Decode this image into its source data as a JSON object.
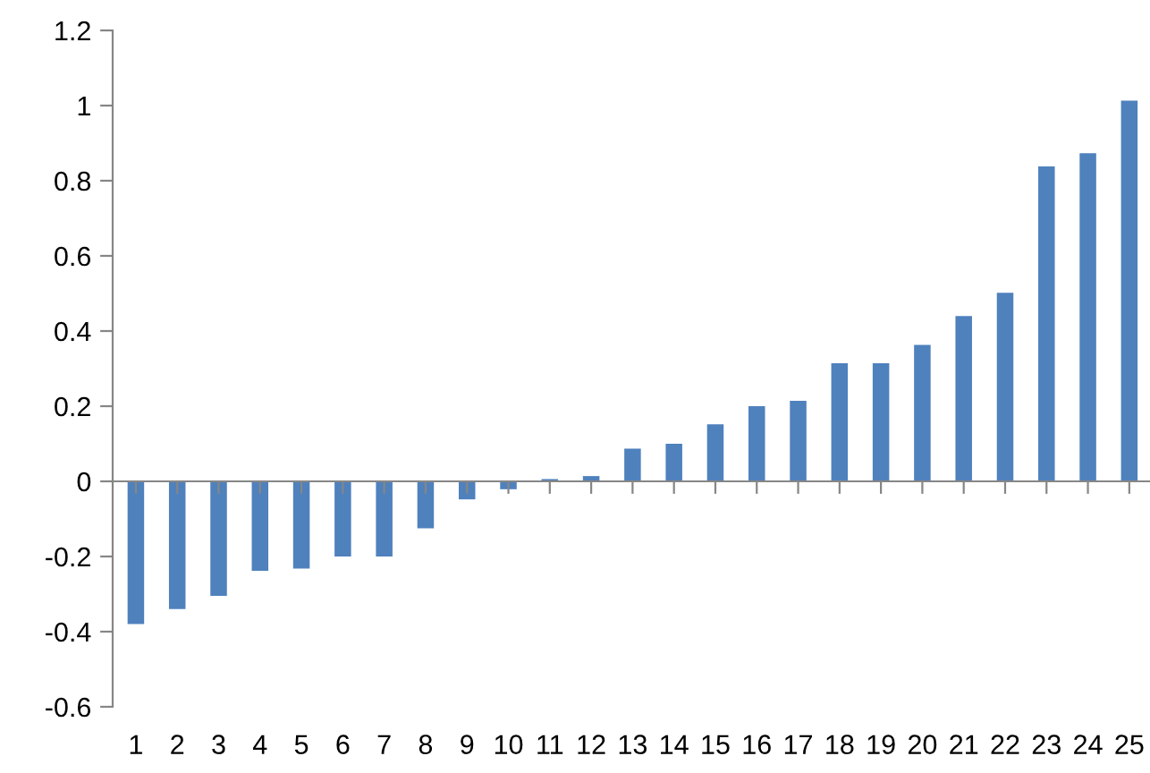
{
  "chart_data": {
    "type": "bar",
    "categories": [
      "1",
      "2",
      "3",
      "4",
      "5",
      "6",
      "7",
      "8",
      "9",
      "10",
      "11",
      "12",
      "13",
      "14",
      "15",
      "16",
      "17",
      "18",
      "19",
      "20",
      "21",
      "22",
      "23",
      "24",
      "25"
    ],
    "values": [
      -0.38,
      -0.34,
      -0.305,
      -0.238,
      -0.232,
      -0.2,
      -0.2,
      -0.125,
      -0.048,
      -0.021,
      0.006,
      0.014,
      0.087,
      0.1,
      0.152,
      0.2,
      0.214,
      0.314,
      0.314,
      0.363,
      0.44,
      0.502,
      0.838,
      0.873,
      1.013
    ],
    "color": "#4f81bd",
    "ylim": [
      -0.6,
      1.2
    ],
    "yticks": [
      -0.6,
      -0.4,
      -0.2,
      0,
      0.2,
      0.4,
      0.6,
      0.8,
      1,
      1.2
    ],
    "legend": false
  }
}
